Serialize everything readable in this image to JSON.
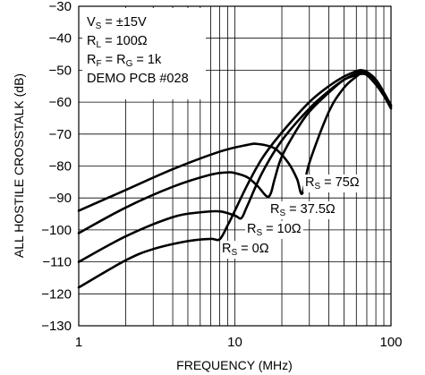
{
  "chart_data": {
    "type": "line",
    "title": "",
    "xlabel": "FREQUENCY (MHz)",
    "ylabel": "ALL HOSTILE CROSSTALK (dB)",
    "x_scale": "log",
    "xlim": [
      1,
      100
    ],
    "ylim": [
      -130,
      -30
    ],
    "x_tick_labels": [
      "1",
      "10",
      "100"
    ],
    "y_tick_labels": [
      "−30",
      "−40",
      "−50",
      "−60",
      "−70",
      "−80",
      "−90",
      "−100",
      "−110",
      "−120",
      "−130"
    ],
    "grid": true,
    "conditions": [
      {
        "main": "V",
        "sub": "S",
        "rest": " = ±15V"
      },
      {
        "main": "R",
        "sub": "L",
        "rest": " = 100Ω"
      },
      {
        "main": "R",
        "sub": "F",
        "rest": " = R",
        "sub2": "G",
        "rest2": " = 1k"
      },
      {
        "main": "DEMO PCB #028"
      }
    ],
    "series": [
      {
        "name_main": "R",
        "name_sub": "S",
        "name_rest": " = 75Ω",
        "x": [
          1,
          2,
          4,
          8,
          12,
          14,
          18,
          22,
          25,
          27,
          30,
          40,
          50,
          60,
          64,
          70,
          80,
          90,
          100
        ],
        "y": [
          -94,
          -87.5,
          -81,
          -75.5,
          -73.4,
          -73.1,
          -74.5,
          -79,
          -84,
          -88.6,
          -79,
          -63,
          -55.5,
          -52,
          -51.2,
          -51.5,
          -54.5,
          -58,
          -62
        ]
      },
      {
        "name_main": "R",
        "name_sub": "S",
        "name_rest": " = 37.5Ω",
        "x": [
          1,
          2,
          4,
          7,
          9,
          10,
          12,
          14,
          16,
          17,
          18,
          20,
          25,
          30,
          40,
          50,
          60,
          64,
          70,
          80,
          90,
          100
        ],
        "y": [
          -101,
          -93,
          -86.5,
          -82.7,
          -82,
          -82.2,
          -83.5,
          -86.3,
          -89.5,
          -88.5,
          -84,
          -77,
          -68.5,
          -63,
          -57,
          -53,
          -51.5,
          -50.8,
          -51,
          -54,
          -57.5,
          -61
        ]
      },
      {
        "name_main": "R",
        "name_sub": "S",
        "name_rest": " = 10Ω",
        "x": [
          1,
          2,
          4,
          6,
          8,
          10,
          11,
          12,
          15,
          20,
          30,
          40,
          50,
          60,
          64,
          70,
          80,
          90,
          100
        ],
        "y": [
          -110,
          -102,
          -96,
          -94.5,
          -94.2,
          -95.5,
          -96.3,
          -92.5,
          -82,
          -72,
          -62,
          -56.5,
          -53,
          -51,
          -50.3,
          -50.6,
          -53,
          -57,
          -61
        ]
      },
      {
        "name_main": "R",
        "name_sub": "S",
        "name_rest": " = 0Ω",
        "x": [
          1,
          2,
          3,
          5,
          7,
          8,
          9,
          10,
          12,
          15,
          20,
          30,
          40,
          50,
          60,
          64,
          70,
          80,
          90,
          100
        ],
        "y": [
          -118,
          -109.5,
          -106,
          -103.5,
          -102.8,
          -102.9,
          -98.5,
          -94,
          -86,
          -77.5,
          -69.5,
          -60,
          -55,
          -52,
          -50.3,
          -50,
          -50.5,
          -53,
          -57,
          -61.5
        ]
      }
    ]
  }
}
